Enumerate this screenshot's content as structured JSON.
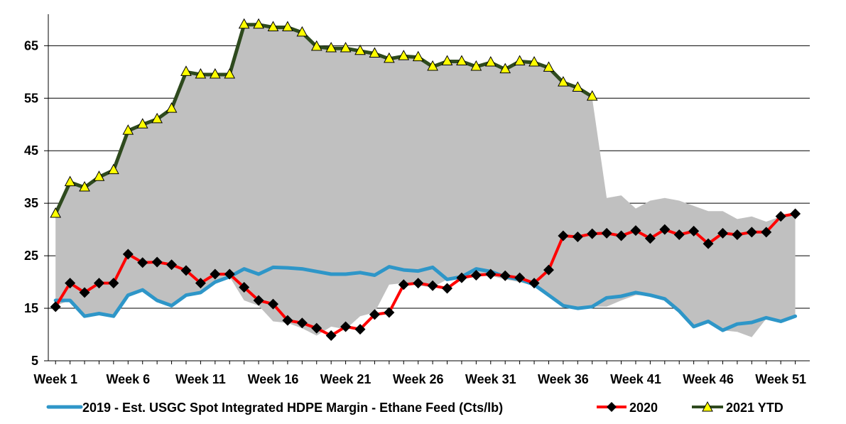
{
  "chart_data": {
    "type": "line",
    "x_tick_labels": [
      "Week 1",
      "Week 6",
      "Week 11",
      "Week 16",
      "Week 21",
      "Week 26",
      "Week 31",
      "Week 36",
      "Week 41",
      "Week 46",
      "Week 51"
    ],
    "y_ticks": [
      5,
      15,
      25,
      35,
      45,
      55,
      65
    ],
    "ylim": [
      5,
      71
    ],
    "xlim": [
      0.5,
      53
    ],
    "grid": "horizontal",
    "legend_position": "bottom",
    "colors": {
      "range_band": "#C0C0C0",
      "series_2019": "#2E96C8",
      "series_2020_line": "#FF0000",
      "series_2020_marker": "#000000",
      "series_2021_line": "#2E4A1E",
      "series_2021_marker": "#FFFF00"
    },
    "range_band": {
      "upper": [
        33,
        39,
        38,
        40,
        41,
        48.5,
        50,
        51,
        53,
        60,
        59.5,
        59.5,
        59.5,
        69,
        69,
        68.5,
        68.5,
        67.5,
        65,
        64.5,
        64.5,
        64,
        63.5,
        62.5,
        63,
        63,
        61,
        62,
        62,
        61,
        62,
        60.5,
        62,
        62,
        61,
        58,
        57,
        55,
        36,
        36.5,
        34,
        35.5,
        36,
        35.5,
        34.5,
        33.5,
        33.5,
        32,
        32.5,
        31.5,
        32.5,
        33
      ],
      "lower": [
        15.5,
        16.5,
        13.5,
        14,
        13.5,
        17.5,
        18.5,
        16.5,
        15.5,
        17.5,
        18,
        20,
        21,
        16.5,
        15.5,
        12.5,
        12.2,
        11.2,
        9.8,
        11.5,
        11,
        13.5,
        14.2,
        19.5,
        19.8,
        19.3,
        19,
        20.5,
        21,
        21.5,
        21.2,
        20.5,
        20,
        19.3,
        17.5,
        15.5,
        15,
        15.3,
        15.3,
        16.5,
        17.5,
        17.5,
        16.5,
        14.5,
        11.5,
        12.5,
        10.8,
        10.5,
        9.5,
        13,
        12.5,
        13.5
      ]
    },
    "series": [
      {
        "name": "2019 - Est. USGC Spot Integrated HDPE Margin - Ethane Feed (Cts/lb)",
        "x": [
          1,
          2,
          3,
          4,
          5,
          6,
          7,
          8,
          9,
          10,
          11,
          12,
          13,
          14,
          15,
          16,
          17,
          18,
          19,
          20,
          21,
          22,
          23,
          24,
          25,
          26,
          27,
          28,
          29,
          30,
          31,
          32,
          33,
          34,
          35,
          36,
          37,
          38,
          39,
          40,
          41,
          42,
          43,
          44,
          45,
          46,
          47,
          48,
          49,
          50,
          51,
          52
        ],
        "values": [
          16.5,
          16.5,
          13.5,
          14,
          13.5,
          17.5,
          18.5,
          16.5,
          15.5,
          17.5,
          18,
          20,
          21,
          22.5,
          21.5,
          22.8,
          22.7,
          22.5,
          22,
          21.5,
          21.5,
          21.8,
          21.3,
          22.9,
          22.3,
          22.1,
          22.8,
          20.5,
          21,
          22.5,
          22,
          21,
          20.5,
          19.5,
          17.5,
          15.5,
          15,
          15.3,
          17,
          17.3,
          18,
          17.5,
          16.8,
          14.5,
          11.5,
          12.5,
          10.8,
          12,
          12.3,
          13.2,
          12.5,
          13.5
        ]
      },
      {
        "name": "2020",
        "x": [
          1,
          2,
          3,
          4,
          5,
          6,
          7,
          8,
          9,
          10,
          11,
          12,
          13,
          14,
          15,
          16,
          17,
          18,
          19,
          20,
          21,
          22,
          23,
          24,
          25,
          26,
          27,
          28,
          29,
          30,
          31,
          32,
          33,
          34,
          35,
          36,
          37,
          38,
          39,
          40,
          41,
          42,
          43,
          44,
          45,
          46,
          47,
          48,
          49,
          50,
          51,
          52
        ],
        "values": [
          15.3,
          19.8,
          18,
          19.8,
          19.8,
          25.3,
          23.7,
          23.8,
          23.3,
          22.2,
          19.8,
          21.5,
          21.5,
          19,
          16.5,
          15.8,
          12.7,
          12.2,
          11.2,
          9.8,
          11.5,
          11,
          13.8,
          14.2,
          19.5,
          19.8,
          19.3,
          18.8,
          20.8,
          21.3,
          21.5,
          21.2,
          20.8,
          19.8,
          22.3,
          28.8,
          28.6,
          29.2,
          29.3,
          28.8,
          29.8,
          28.3,
          30,
          29,
          29.7,
          27.3,
          29.3,
          29,
          29.5,
          29.5,
          32.5,
          33
        ]
      },
      {
        "name": "2021 YTD",
        "x": [
          1,
          2,
          3,
          4,
          5,
          6,
          7,
          8,
          9,
          10,
          11,
          12,
          13,
          14,
          15,
          16,
          17,
          18,
          19,
          20,
          21,
          22,
          23,
          24,
          25,
          26,
          27,
          28,
          29,
          30,
          31,
          32,
          33,
          34,
          35,
          36,
          37,
          38
        ],
        "values": [
          33,
          39,
          38,
          40,
          41.3,
          48.8,
          50,
          51,
          53,
          60,
          59.5,
          59.5,
          59.5,
          69,
          69,
          68.5,
          68.5,
          67.5,
          64.8,
          64.5,
          64.5,
          64,
          63.5,
          62.5,
          63,
          62.8,
          61,
          62,
          62,
          61,
          61.8,
          60.5,
          62,
          61.8,
          60.8,
          58,
          57,
          55.3
        ]
      }
    ]
  }
}
